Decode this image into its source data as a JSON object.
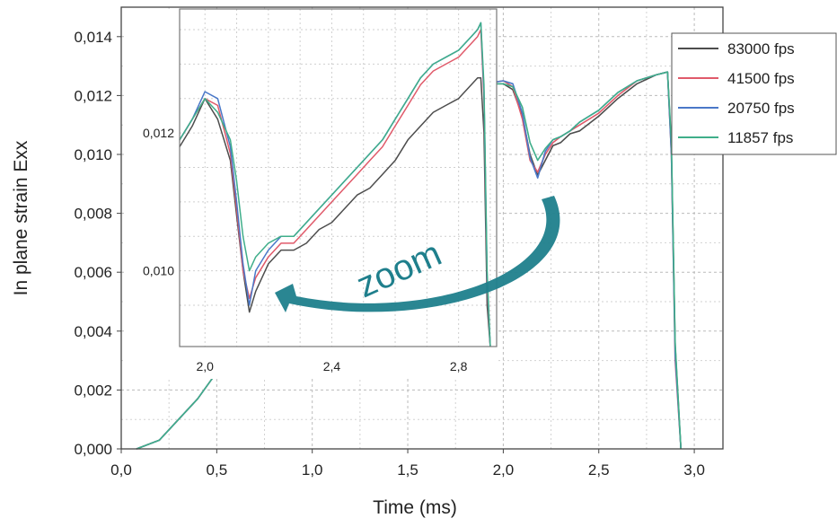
{
  "chart_data": {
    "type": "line",
    "xlabel": "Time (ms)",
    "ylabel": "In plane strain Exx",
    "xlim": [
      0.0,
      3.15
    ],
    "ylim": [
      0.0,
      0.015
    ],
    "xticks": [
      0.0,
      0.5,
      1.0,
      1.5,
      2.0,
      2.5,
      3.0
    ],
    "xtick_labels": [
      "0,0",
      "0,5",
      "1,0",
      "1,5",
      "2,0",
      "2,5",
      "3,0"
    ],
    "yticks": [
      0.0,
      0.002,
      0.004,
      0.006,
      0.008,
      0.01,
      0.012,
      0.014
    ],
    "ytick_labels": [
      "0,000",
      "0,002",
      "0,004",
      "0,006",
      "0,008",
      "0,010",
      "0,012",
      "0,014"
    ],
    "grid": true,
    "legend_position": "top-right",
    "series": [
      {
        "name": "83000 fps",
        "color": "#4d4d4d",
        "x": [
          0.08,
          0.2,
          0.3,
          0.4,
          0.5,
          0.6,
          0.7,
          0.8,
          0.9,
          1.0,
          1.1,
          1.2,
          1.3,
          1.4,
          1.5,
          1.6,
          1.7,
          1.8,
          1.9,
          2.0,
          2.05,
          2.1,
          2.14,
          2.18,
          2.22,
          2.26,
          2.3,
          2.35,
          2.4,
          2.5,
          2.6,
          2.7,
          2.8,
          2.86,
          2.88,
          2.9,
          2.93
        ],
        "y": [
          0.0,
          0.0003,
          0.001,
          0.0017,
          0.0026,
          0.0033,
          0.0041,
          0.0051,
          0.0059,
          0.0068,
          0.0076,
          0.0084,
          0.0092,
          0.0099,
          0.0105,
          0.0111,
          0.0117,
          0.0122,
          0.0124,
          0.0124,
          0.0122,
          0.0113,
          0.01,
          0.0093,
          0.0098,
          0.0103,
          0.0104,
          0.0107,
          0.0108,
          0.0113,
          0.0119,
          0.0124,
          0.0127,
          0.0128,
          0.0102,
          0.0035,
          0.0
        ]
      },
      {
        "name": "41500 fps",
        "color": "#e05a6a",
        "x": [
          0.08,
          0.2,
          0.3,
          0.4,
          0.5,
          0.6,
          0.7,
          0.8,
          0.9,
          1.0,
          1.1,
          1.2,
          1.3,
          1.4,
          1.5,
          1.6,
          1.7,
          1.8,
          1.9,
          2.0,
          2.05,
          2.1,
          2.14,
          2.18,
          2.22,
          2.26,
          2.3,
          2.35,
          2.4,
          2.5,
          2.6,
          2.7,
          2.8,
          2.86,
          2.88,
          2.9,
          2.93
        ],
        "y": [
          0.0,
          0.0003,
          0.001,
          0.0017,
          0.0026,
          0.0033,
          0.0041,
          0.0051,
          0.0059,
          0.0068,
          0.0076,
          0.0084,
          0.0092,
          0.0099,
          0.0105,
          0.0111,
          0.0117,
          0.0122,
          0.0124,
          0.0125,
          0.0123,
          0.0112,
          0.0098,
          0.0094,
          0.01,
          0.0104,
          0.0106,
          0.0108,
          0.011,
          0.0114,
          0.012,
          0.0125,
          0.0127,
          0.0128,
          0.01,
          0.003,
          0.0
        ]
      },
      {
        "name": "20750 fps",
        "color": "#4a78c8",
        "x": [
          0.08,
          0.2,
          0.3,
          0.4,
          0.5,
          0.6,
          0.7,
          0.8,
          0.9,
          1.0,
          1.1,
          1.2,
          1.3,
          1.4,
          1.5,
          1.6,
          1.7,
          1.8,
          1.9,
          2.0,
          2.05,
          2.1,
          2.14,
          2.18,
          2.22,
          2.26,
          2.3,
          2.35,
          2.4,
          2.5,
          2.6,
          2.7,
          2.8,
          2.86,
          2.88,
          2.9,
          2.93
        ],
        "y": [
          0.0,
          0.0003,
          0.001,
          0.0017,
          0.0026,
          0.0033,
          0.0041,
          0.0051,
          0.0059,
          0.0068,
          0.0076,
          0.0084,
          0.0092,
          0.0099,
          0.0105,
          0.0111,
          0.0117,
          0.0122,
          0.0124,
          0.0125,
          0.0124,
          0.0114,
          0.0099,
          0.0092,
          0.0101,
          0.0105,
          0.0106,
          0.0108,
          0.0111,
          0.0115,
          0.0121,
          0.0125,
          0.0127,
          0.0128,
          0.01,
          0.0032,
          0.0
        ]
      },
      {
        "name": "11857 fps",
        "color": "#3fae8a",
        "x": [
          0.08,
          0.2,
          0.3,
          0.4,
          0.5,
          0.6,
          0.7,
          0.8,
          0.9,
          1.0,
          1.1,
          1.2,
          1.3,
          1.4,
          1.5,
          1.6,
          1.7,
          1.8,
          1.9,
          2.0,
          2.05,
          2.1,
          2.14,
          2.18,
          2.22,
          2.26,
          2.3,
          2.35,
          2.4,
          2.5,
          2.6,
          2.7,
          2.8,
          2.86,
          2.88,
          2.9,
          2.93
        ],
        "y": [
          0.0,
          0.0003,
          0.001,
          0.0017,
          0.0026,
          0.0033,
          0.0041,
          0.0051,
          0.0059,
          0.0068,
          0.0076,
          0.0084,
          0.0092,
          0.0099,
          0.0105,
          0.0111,
          0.0117,
          0.0122,
          0.0124,
          0.0124,
          0.0123,
          0.0116,
          0.0104,
          0.0098,
          0.0102,
          0.0105,
          0.0106,
          0.0108,
          0.0111,
          0.0115,
          0.0121,
          0.0125,
          0.0127,
          0.0128,
          0.0104,
          0.0036,
          0.0
        ]
      }
    ],
    "inset": {
      "xlim": [
        1.92,
        2.92
      ],
      "ylim": [
        0.0089,
        0.0138
      ],
      "xticks": [
        2.0,
        2.4,
        2.8
      ],
      "xtick_labels": [
        "2,0",
        "2,4",
        "2,8"
      ],
      "yticks": [
        0.01,
        0.012
      ],
      "ytick_labels": [
        "0,010",
        "0,012"
      ],
      "series": [
        {
          "name": "83000 fps",
          "color": "#4d4d4d",
          "x": [
            1.92,
            1.96,
            2.0,
            2.04,
            2.08,
            2.1,
            2.12,
            2.14,
            2.16,
            2.2,
            2.24,
            2.28,
            2.32,
            2.36,
            2.4,
            2.44,
            2.48,
            2.52,
            2.56,
            2.6,
            2.64,
            2.68,
            2.72,
            2.76,
            2.8,
            2.84,
            2.86,
            2.87,
            2.88,
            2.89,
            2.9
          ],
          "y": [
            0.0118,
            0.0121,
            0.0125,
            0.0122,
            0.0116,
            0.0108,
            0.01,
            0.0094,
            0.0097,
            0.0101,
            0.0103,
            0.0103,
            0.0104,
            0.0106,
            0.0107,
            0.0109,
            0.0111,
            0.0112,
            0.0114,
            0.0116,
            0.0119,
            0.0121,
            0.0123,
            0.0124,
            0.0125,
            0.0127,
            0.0128,
            0.0128,
            0.012,
            0.0095,
            0.0089
          ]
        },
        {
          "name": "41500 fps",
          "color": "#e05a6a",
          "x": [
            1.92,
            1.96,
            2.0,
            2.04,
            2.08,
            2.1,
            2.12,
            2.14,
            2.16,
            2.2,
            2.24,
            2.28,
            2.32,
            2.36,
            2.4,
            2.44,
            2.48,
            2.52,
            2.56,
            2.6,
            2.64,
            2.68,
            2.72,
            2.76,
            2.8,
            2.84,
            2.86,
            2.87,
            2.88,
            2.89,
            2.9
          ],
          "y": [
            0.0119,
            0.0122,
            0.0125,
            0.0124,
            0.0117,
            0.0109,
            0.01,
            0.0096,
            0.0099,
            0.0102,
            0.0104,
            0.0104,
            0.0106,
            0.0108,
            0.011,
            0.0112,
            0.0114,
            0.0116,
            0.0118,
            0.0121,
            0.0124,
            0.0127,
            0.0129,
            0.013,
            0.0131,
            0.0133,
            0.0134,
            0.0135,
            0.0125,
            0.0098,
            0.0089
          ]
        },
        {
          "name": "20750 fps",
          "color": "#4a78c8",
          "x": [
            1.92,
            1.96,
            2.0,
            2.04,
            2.08,
            2.1,
            2.12,
            2.14,
            2.16,
            2.2,
            2.24,
            2.28,
            2.32,
            2.36,
            2.4,
            2.44,
            2.48,
            2.52,
            2.56,
            2.6,
            2.64,
            2.68,
            2.72,
            2.76,
            2.8,
            2.84,
            2.86,
            2.87,
            2.88,
            2.89,
            2.9
          ],
          "y": [
            0.0119,
            0.0122,
            0.0126,
            0.0125,
            0.0118,
            0.011,
            0.0101,
            0.0095,
            0.01,
            0.0103,
            0.0105,
            0.0105,
            0.0107,
            0.0109,
            0.0111,
            0.0113,
            0.0115,
            0.0117,
            0.0119,
            0.0122,
            0.0125,
            0.0128,
            0.013,
            0.0131,
            0.0132,
            0.0134,
            0.0135,
            0.0136,
            0.0126,
            0.0099,
            0.0089
          ]
        },
        {
          "name": "11857 fps",
          "color": "#3fae8a",
          "x": [
            1.92,
            1.96,
            2.0,
            2.04,
            2.08,
            2.1,
            2.12,
            2.14,
            2.16,
            2.2,
            2.24,
            2.28,
            2.32,
            2.36,
            2.4,
            2.44,
            2.48,
            2.52,
            2.56,
            2.6,
            2.64,
            2.68,
            2.72,
            2.76,
            2.8,
            2.84,
            2.86,
            2.87,
            2.88,
            2.89,
            2.9
          ],
          "y": [
            0.0119,
            0.0122,
            0.0125,
            0.0123,
            0.0119,
            0.0113,
            0.0105,
            0.01,
            0.0102,
            0.0104,
            0.0105,
            0.0105,
            0.0107,
            0.0109,
            0.0111,
            0.0113,
            0.0115,
            0.0117,
            0.0119,
            0.0122,
            0.0125,
            0.0128,
            0.013,
            0.0131,
            0.0132,
            0.0134,
            0.0135,
            0.0136,
            0.0127,
            0.01,
            0.0089
          ]
        }
      ]
    },
    "annotations": [
      {
        "text": "zoom",
        "color": "#1f7f8c"
      }
    ]
  }
}
